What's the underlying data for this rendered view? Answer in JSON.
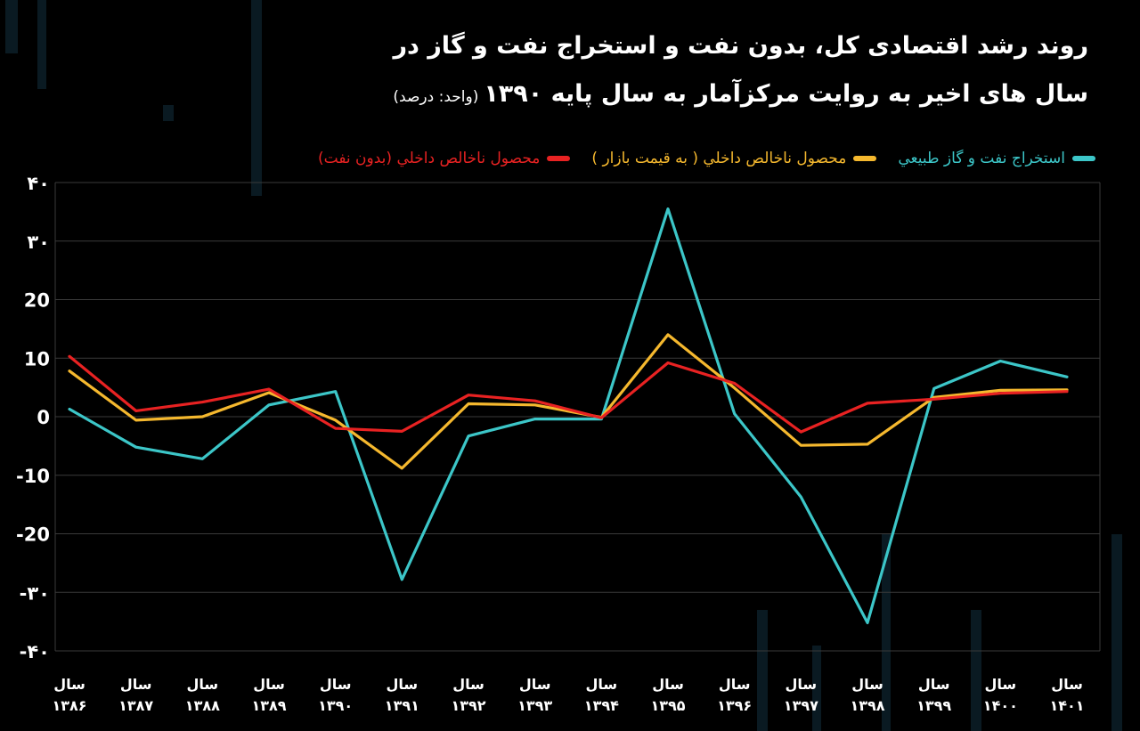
{
  "title_line1": "روند رشد اقتصادی کل، بدون نفت و استخراج نفت و گاز در",
  "title_line2": "سال های اخیر به روایت مرکزآمار به سال پایه ۱۳۹۰",
  "title_unit": "(واحد: درصد)",
  "chart_data": {
    "type": "line",
    "x": [
      "سال ۱۳۸۶",
      "سال ۱۳۸۷",
      "سال ۱۳۸۸",
      "سال ۱۳۸۹",
      "سال ۱۳۹۰",
      "سال ۱۳۹۱",
      "سال ۱۳۹۲",
      "سال ۱۳۹۳",
      "سال ۱۳۹۴",
      "سال ۱۳۹۵",
      "سال ۱۳۹۶",
      "سال ۱۳۹۷",
      "سال ۱۳۹۸",
      "سال ۱۳۹۹",
      "سال ۱۴۰۰",
      "سال ۱۴۰۱"
    ],
    "x_word": "سال",
    "x_years": [
      "۱۳۸۶",
      "۱۳۸۷",
      "۱۳۸۸",
      "۱۳۸۹",
      "۱۳۹۰",
      "۱۳۹۱",
      "۱۳۹۲",
      "۱۳۹۳",
      "۱۳۹۴",
      "۱۳۹۵",
      "۱۳۹۶",
      "۱۳۹۷",
      "۱۳۹۸",
      "۱۳۹۹",
      "۱۴۰۰",
      "۱۴۰۱"
    ],
    "ylim": [
      -40,
      40
    ],
    "yticks": [
      40,
      30,
      20,
      10,
      0,
      -10,
      -20,
      -30,
      -40
    ],
    "ytick_labels": [
      "۴۰",
      "۳۰",
      "20",
      "10",
      "0",
      "-10",
      "-20",
      "-۳۰",
      "-۴۰"
    ],
    "grid": true,
    "legend_position": "top",
    "series": [
      {
        "name": "استخراج نفت و گاز طبيعي",
        "color": "#3cc6c8",
        "values": [
          1.3,
          -5.2,
          -7.2,
          2.0,
          4.3,
          -27.8,
          -3.3,
          -0.4,
          -0.4,
          35.5,
          0.5,
          -13.7,
          -35.2,
          4.8,
          9.5,
          6.8
        ]
      },
      {
        "name": "محصول ناخالص داخلي ( به قيمت بازار )",
        "color": "#f5b82e",
        "values": [
          7.8,
          -0.6,
          0.0,
          4.1,
          -0.6,
          -8.8,
          2.2,
          2.0,
          -0.1,
          14.0,
          4.9,
          -4.9,
          -4.7,
          3.3,
          4.5,
          4.6
        ]
      },
      {
        "name": "محصول ناخالص داخلي (بدون نفت)",
        "color": "#e82222",
        "values": [
          10.3,
          1.0,
          2.5,
          4.7,
          -2.0,
          -2.5,
          3.7,
          2.7,
          -0.2,
          9.2,
          5.7,
          -2.6,
          2.3,
          3.0,
          4.0,
          4.3
        ]
      }
    ]
  }
}
